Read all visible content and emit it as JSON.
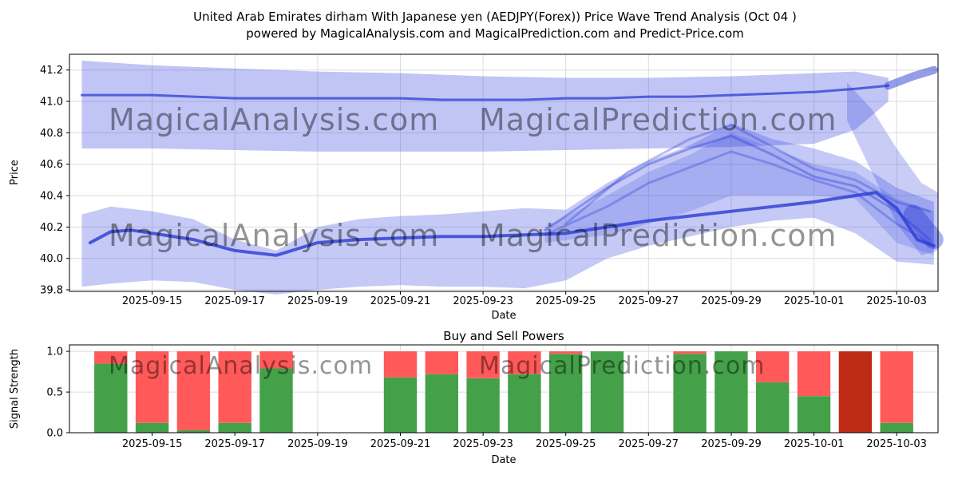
{
  "figure": {
    "title_line1": "United Arab Emirates dirham With Japanese yen (AEDJPY(Forex)) Price Wave Trend Analysis (Oct 04 )",
    "title_line2": "powered by MagicalAnalysis.com and MagicalPrediction.com and Predict-Price.com"
  },
  "watermark": {
    "texts": [
      "MagicalAnalysis.com",
      "MagicalPrediction.com"
    ],
    "color": "#8c8c8c",
    "opacity": 0.42
  },
  "colors": {
    "band": "#3c4ce0",
    "line_dark": "#2b3bd4",
    "grid": "#dcdcdc",
    "axis": "#000000",
    "bar_green": "#44a049",
    "bar_red": "#ff5959",
    "bar_dark_red": "#bd2a15"
  },
  "chart_data": [
    {
      "type": "area",
      "name": "price_wave_trend",
      "ylabel": "Price",
      "xlabel": "Date",
      "xlim_dates": [
        "2025-09-13",
        "2025-10-04"
      ],
      "ylim": [
        39.79,
        41.3
      ],
      "x_ticks": [
        "2025-09-15",
        "2025-09-17",
        "2025-09-19",
        "2025-09-21",
        "2025-09-23",
        "2025-09-25",
        "2025-09-27",
        "2025-09-29",
        "2025-10-01",
        "2025-10-03"
      ],
      "y_ticks": [
        "39.8",
        "40.0",
        "40.2",
        "40.4",
        "40.6",
        "40.8",
        "41.0",
        "41.2"
      ],
      "grid": true,
      "ribbons": [
        {
          "alpha": 0.32,
          "x": [
            0.3,
            2,
            4,
            6,
            8,
            10,
            12,
            14,
            16,
            17,
            18,
            19,
            19.8
          ],
          "hi": [
            41.26,
            41.23,
            41.21,
            41.19,
            41.18,
            41.16,
            41.15,
            41.15,
            41.16,
            41.17,
            41.18,
            41.19,
            41.15
          ],
          "lo": [
            40.7,
            40.7,
            40.69,
            40.68,
            40.68,
            40.68,
            40.69,
            40.7,
            40.71,
            40.72,
            40.73,
            40.82,
            41.0
          ]
        },
        {
          "alpha": 0.28,
          "x": [
            18.8,
            19.4,
            20.0,
            20.6,
            21.0
          ],
          "hi": [
            41.12,
            40.95,
            40.7,
            40.48,
            40.42
          ],
          "lo": [
            40.88,
            40.55,
            40.22,
            40.02,
            40.05
          ]
        },
        {
          "alpha": 0.3,
          "x": [
            0.3,
            1,
            2,
            3,
            4,
            5,
            6,
            7,
            8,
            9,
            10,
            11,
            12,
            13,
            14,
            15,
            16,
            17,
            18,
            19,
            20,
            20.9
          ],
          "hi": [
            40.28,
            40.33,
            40.3,
            40.25,
            40.12,
            40.05,
            40.2,
            40.25,
            40.27,
            40.28,
            40.3,
            40.32,
            40.31,
            40.48,
            40.62,
            40.72,
            40.86,
            40.76,
            40.7,
            40.62,
            40.45,
            40.36
          ],
          "lo": [
            39.82,
            39.84,
            39.86,
            39.85,
            39.8,
            39.77,
            39.8,
            39.82,
            39.83,
            39.82,
            39.82,
            39.81,
            39.86,
            40.0,
            40.08,
            40.14,
            40.2,
            40.24,
            40.26,
            40.16,
            39.98,
            39.96
          ]
        },
        {
          "alpha": 0.22,
          "x": [
            11.5,
            13,
            14,
            15,
            16,
            17,
            18,
            19,
            20,
            20.9
          ],
          "hi": [
            40.2,
            40.4,
            40.55,
            40.66,
            40.8,
            40.7,
            40.6,
            40.55,
            40.38,
            40.3
          ],
          "lo": [
            40.1,
            40.15,
            40.22,
            40.3,
            40.4,
            40.4,
            40.4,
            40.38,
            40.1,
            40.02
          ]
        }
      ],
      "lines": [
        {
          "width": 3,
          "alpha": 0.75,
          "x": [
            0.3,
            1,
            2,
            3,
            4,
            5,
            6,
            7,
            8,
            9,
            10,
            11,
            12,
            13,
            14,
            15,
            16,
            17,
            18,
            19,
            19.8
          ],
          "y": [
            41.04,
            41.04,
            41.04,
            41.03,
            41.02,
            41.02,
            41.02,
            41.02,
            41.02,
            41.01,
            41.01,
            41.01,
            41.02,
            41.02,
            41.03,
            41.03,
            41.04,
            41.05,
            41.06,
            41.08,
            41.1
          ]
        },
        {
          "width": 10,
          "alpha": 0.5,
          "x": [
            19.8,
            20.4,
            20.9
          ],
          "y": [
            41.1,
            41.16,
            41.2
          ]
        },
        {
          "width": 4,
          "alpha": 0.8,
          "x": [
            0.5,
            1,
            1.5,
            2,
            3,
            4,
            5,
            6,
            7,
            8,
            9,
            10,
            11,
            12,
            13,
            14,
            15,
            16,
            17,
            18,
            19,
            19.5,
            20,
            20.5,
            20.9
          ],
          "y": [
            40.1,
            40.17,
            40.18,
            40.16,
            40.12,
            40.05,
            40.02,
            40.1,
            40.12,
            40.13,
            40.14,
            40.14,
            40.15,
            40.16,
            40.2,
            40.24,
            40.27,
            40.3,
            40.33,
            40.36,
            40.4,
            40.42,
            40.32,
            40.12,
            40.08
          ]
        },
        {
          "width": 3,
          "alpha": 0.38,
          "x": [
            11.5,
            13,
            14,
            15,
            16,
            17,
            18,
            19,
            20,
            20.8
          ],
          "y": [
            40.18,
            40.45,
            40.6,
            40.7,
            40.78,
            40.66,
            40.52,
            40.46,
            40.3,
            40.12
          ]
        },
        {
          "width": 3,
          "alpha": 0.32,
          "x": [
            11.5,
            13,
            14,
            15,
            16,
            17,
            18,
            19,
            20,
            20.8
          ],
          "y": [
            40.15,
            40.33,
            40.48,
            40.58,
            40.68,
            40.6,
            40.5,
            40.42,
            40.22,
            40.1
          ]
        },
        {
          "width": 3,
          "alpha": 0.32,
          "x": [
            12,
            13.5,
            15,
            16,
            17,
            18,
            19,
            20,
            20.8
          ],
          "y": [
            40.22,
            40.55,
            40.76,
            40.85,
            40.71,
            40.57,
            40.5,
            40.36,
            40.3
          ]
        },
        {
          "width": 24,
          "alpha": 0.4,
          "x": [
            20.4,
            20.9
          ],
          "y": [
            40.28,
            40.12
          ]
        }
      ]
    },
    {
      "type": "bar",
      "name": "buy_sell_powers",
      "title": "Buy and Sell Powers",
      "ylabel": "Signal Strength",
      "xlabel": "Date",
      "xlim_dates": [
        "2025-09-13",
        "2025-10-04"
      ],
      "ylim": [
        0,
        1.08
      ],
      "x_ticks": [
        "2025-09-15",
        "2025-09-17",
        "2025-09-19",
        "2025-09-21",
        "2025-09-23",
        "2025-09-25",
        "2025-09-27",
        "2025-09-29",
        "2025-10-01",
        "2025-10-03"
      ],
      "y_ticks": [
        "0.0",
        "0.5",
        "1.0"
      ],
      "grid": true,
      "bar_width_days": 0.8,
      "bars": [
        {
          "date": "2025-09-14",
          "green": 0.85,
          "red": 0.15
        },
        {
          "date": "2025-09-15",
          "green": 0.12,
          "red": 0.88
        },
        {
          "date": "2025-09-16",
          "green": 0.03,
          "red": 0.97
        },
        {
          "date": "2025-09-17",
          "green": 0.12,
          "red": 0.88
        },
        {
          "date": "2025-09-18",
          "green": 0.79,
          "red": 0.21
        },
        {
          "date": "2025-09-21",
          "green": 0.68,
          "red": 0.32
        },
        {
          "date": "2025-09-22",
          "green": 0.72,
          "red": 0.28
        },
        {
          "date": "2025-09-23",
          "green": 0.67,
          "red": 0.33
        },
        {
          "date": "2025-09-24",
          "green": 0.72,
          "red": 0.28
        },
        {
          "date": "2025-09-25",
          "green": 0.97,
          "red": 0.03
        },
        {
          "date": "2025-09-26",
          "green": 1.0,
          "red": 0.0
        },
        {
          "date": "2025-09-28",
          "green": 0.97,
          "red": 0.03
        },
        {
          "date": "2025-09-29",
          "green": 1.0,
          "red": 0.0
        },
        {
          "date": "2025-09-30",
          "green": 0.62,
          "red": 0.38
        },
        {
          "date": "2025-10-01",
          "green": 0.45,
          "red": 0.55
        },
        {
          "date": "2025-10-02",
          "green": 0.0,
          "red": 1.0,
          "dark": true
        },
        {
          "date": "2025-10-03",
          "green": 0.12,
          "red": 0.88
        }
      ]
    }
  ]
}
